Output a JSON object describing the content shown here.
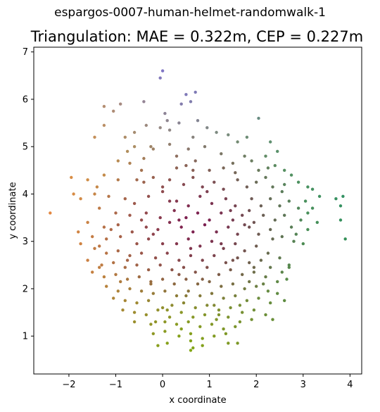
{
  "figure": {
    "suptitle": "espargos-0007-human-helmet-randomwalk-1",
    "title": "Triangulation: MAE = 0.322m, CEP = 0.227m"
  },
  "chart_data": {
    "type": "scatter",
    "title": "Triangulation: MAE = 0.322m, CEP = 0.227m",
    "xlabel": "x coordinate",
    "ylabel": "y coordinate",
    "xlim": [
      -2.75,
      4.25
    ],
    "ylim": [
      0.2,
      7.1
    ],
    "xticks": [
      -2,
      -1,
      0,
      1,
      2,
      3,
      4
    ],
    "yticks": [
      1,
      2,
      3,
      4,
      5,
      6,
      7
    ],
    "grid": false,
    "legend": "none",
    "color_encoding": "2D position colormap (blue top, orange left, green bottom, teal right)",
    "points": [
      [
        0.0,
        6.6
      ],
      [
        -0.05,
        6.45
      ],
      [
        0.5,
        6.1
      ],
      [
        0.7,
        6.15
      ],
      [
        0.6,
        5.95
      ],
      [
        0.4,
        5.9
      ],
      [
        -0.4,
        5.95
      ],
      [
        -0.9,
        5.9
      ],
      [
        -1.25,
        5.85
      ],
      [
        -1.05,
        5.75
      ],
      [
        -1.45,
        5.2
      ],
      [
        -1.25,
        5.45
      ],
      [
        2.05,
        5.6
      ],
      [
        0.05,
        5.7
      ],
      [
        0.1,
        5.55
      ],
      [
        -0.05,
        5.4
      ],
      [
        0.15,
        5.35
      ],
      [
        0.35,
        5.5
      ],
      [
        0.75,
        5.55
      ],
      [
        0.95,
        5.4
      ],
      [
        0.9,
        5.0
      ],
      [
        1.15,
        5.3
      ],
      [
        1.4,
        5.25
      ],
      [
        1.6,
        5.1
      ],
      [
        1.8,
        5.2
      ],
      [
        2.3,
        5.1
      ],
      [
        -0.35,
        5.45
      ],
      [
        -0.6,
        5.3
      ],
      [
        -0.8,
        5.2
      ],
      [
        -0.6,
        5.0
      ],
      [
        -0.25,
        5.0
      ],
      [
        -0.4,
        4.75
      ],
      [
        -0.7,
        4.65
      ],
      [
        -0.95,
        4.7
      ],
      [
        -0.75,
        4.9
      ],
      [
        0.3,
        4.8
      ],
      [
        0.55,
        4.95
      ],
      [
        0.3,
        4.55
      ],
      [
        0.5,
        4.6
      ],
      [
        0.7,
        4.7
      ],
      [
        1.0,
        4.5
      ],
      [
        1.3,
        4.55
      ],
      [
        1.5,
        4.65
      ],
      [
        1.75,
        4.8
      ],
      [
        1.9,
        4.7
      ],
      [
        2.05,
        4.5
      ],
      [
        2.25,
        4.55
      ],
      [
        2.2,
        4.8
      ],
      [
        2.45,
        4.9
      ],
      [
        2.4,
        4.6
      ],
      [
        2.6,
        4.5
      ],
      [
        2.75,
        4.4
      ],
      [
        2.9,
        4.25
      ],
      [
        -1.95,
        4.35
      ],
      [
        -1.6,
        4.3
      ],
      [
        -1.4,
        4.15
      ],
      [
        -1.25,
        4.4
      ],
      [
        -0.95,
        4.3
      ],
      [
        -0.55,
        4.3
      ],
      [
        -0.4,
        4.25
      ],
      [
        -0.2,
        4.35
      ],
      [
        0.0,
        4.15
      ],
      [
        0.15,
        4.3
      ],
      [
        0.45,
        4.2
      ],
      [
        0.65,
        4.35
      ],
      [
        0.85,
        4.15
      ],
      [
        1.1,
        4.25
      ],
      [
        1.3,
        4.1
      ],
      [
        1.6,
        4.3
      ],
      [
        1.8,
        4.15
      ],
      [
        2.0,
        4.25
      ],
      [
        2.2,
        4.35
      ],
      [
        2.35,
        4.15
      ],
      [
        2.6,
        4.2
      ],
      [
        3.1,
        4.15
      ],
      [
        3.2,
        4.1
      ],
      [
        3.35,
        3.95
      ],
      [
        3.7,
        3.9
      ],
      [
        3.85,
        3.95
      ],
      [
        3.8,
        3.75
      ],
      [
        3.8,
        3.45
      ],
      [
        3.9,
        3.05
      ],
      [
        -2.4,
        3.6
      ],
      [
        -1.9,
        4.0
      ],
      [
        -1.75,
        3.9
      ],
      [
        -1.45,
        4.0
      ],
      [
        -1.15,
        3.95
      ],
      [
        -0.8,
        3.9
      ],
      [
        -0.6,
        3.8
      ],
      [
        -0.3,
        3.95
      ],
      [
        0.0,
        4.05
      ],
      [
        0.3,
        3.85
      ],
      [
        0.55,
        3.75
      ],
      [
        0.8,
        3.95
      ],
      [
        1.05,
        3.8
      ],
      [
        1.35,
        3.9
      ],
      [
        1.55,
        3.75
      ],
      [
        1.9,
        3.9
      ],
      [
        2.1,
        3.75
      ],
      [
        2.3,
        3.9
      ],
      [
        2.5,
        3.75
      ],
      [
        2.7,
        3.85
      ],
      [
        2.9,
        3.7
      ],
      [
        3.05,
        3.85
      ],
      [
        3.2,
        3.7
      ],
      [
        3.3,
        3.4
      ],
      [
        3.1,
        3.25
      ],
      [
        2.95,
        3.45
      ],
      [
        -1.35,
        3.7
      ],
      [
        -1.0,
        3.6
      ],
      [
        -0.7,
        3.55
      ],
      [
        -0.35,
        3.6
      ],
      [
        -0.05,
        3.5
      ],
      [
        0.25,
        3.65
      ],
      [
        0.5,
        3.5
      ],
      [
        0.75,
        3.6
      ],
      [
        1.0,
        3.45
      ],
      [
        1.25,
        3.6
      ],
      [
        1.5,
        3.45
      ],
      [
        1.7,
        3.55
      ],
      [
        1.95,
        3.4
      ],
      [
        2.15,
        3.55
      ],
      [
        2.4,
        3.45
      ],
      [
        2.6,
        3.55
      ],
      [
        2.75,
        3.3
      ],
      [
        -1.6,
        3.4
      ],
      [
        -1.25,
        3.3
      ],
      [
        -0.95,
        3.35
      ],
      [
        -0.65,
        3.2
      ],
      [
        -0.35,
        3.3
      ],
      [
        -0.1,
        3.25
      ],
      [
        0.15,
        3.4
      ],
      [
        0.4,
        3.3
      ],
      [
        0.65,
        3.2
      ],
      [
        0.9,
        3.35
      ],
      [
        1.15,
        3.2
      ],
      [
        1.4,
        3.3
      ],
      [
        1.6,
        3.15
      ],
      [
        1.85,
        3.3
      ],
      [
        2.05,
        3.15
      ],
      [
        2.3,
        3.25
      ],
      [
        2.55,
        3.1
      ],
      [
        2.8,
        3.0
      ],
      [
        3.0,
        2.95
      ],
      [
        -1.8,
        3.2
      ],
      [
        -1.5,
        3.1
      ],
      [
        -1.2,
        3.05
      ],
      [
        -0.9,
        3.1
      ],
      [
        -0.55,
        2.95
      ],
      [
        -0.3,
        3.05
      ],
      [
        0.0,
        2.95
      ],
      [
        0.3,
        2.95
      ],
      [
        0.55,
        3.05
      ],
      [
        0.8,
        2.9
      ],
      [
        1.05,
        3.0
      ],
      [
        1.3,
        2.85
      ],
      [
        1.55,
        2.95
      ],
      [
        1.75,
        2.8
      ],
      [
        2.0,
        2.9
      ],
      [
        2.25,
        2.75
      ],
      [
        2.5,
        2.65
      ],
      [
        2.7,
        2.5
      ],
      [
        -1.75,
        2.95
      ],
      [
        -1.45,
        2.85
      ],
      [
        -1.2,
        2.75
      ],
      [
        -0.95,
        2.8
      ],
      [
        -0.7,
        2.7
      ],
      [
        -0.45,
        2.75
      ],
      [
        -0.15,
        2.65
      ],
      [
        0.1,
        2.75
      ],
      [
        0.35,
        2.6
      ],
      [
        0.6,
        2.7
      ],
      [
        0.85,
        2.6
      ],
      [
        1.1,
        2.7
      ],
      [
        1.35,
        2.55
      ],
      [
        1.6,
        2.65
      ],
      [
        1.85,
        2.55
      ],
      [
        2.1,
        2.6
      ],
      [
        2.3,
        2.45
      ],
      [
        2.55,
        2.35
      ],
      [
        -1.6,
        2.6
      ],
      [
        -1.3,
        2.5
      ],
      [
        -1.05,
        2.55
      ],
      [
        -0.8,
        2.45
      ],
      [
        -0.55,
        2.5
      ],
      [
        -0.3,
        2.4
      ],
      [
        -0.05,
        2.5
      ],
      [
        0.2,
        2.4
      ],
      [
        0.45,
        2.45
      ],
      [
        0.7,
        2.35
      ],
      [
        0.95,
        2.45
      ],
      [
        1.2,
        2.3
      ],
      [
        1.45,
        2.4
      ],
      [
        1.7,
        2.3
      ],
      [
        1.95,
        2.35
      ],
      [
        2.2,
        2.25
      ],
      [
        2.45,
        2.15
      ],
      [
        2.65,
        2.2
      ],
      [
        -1.5,
        2.35
      ],
      [
        -1.25,
        2.25
      ],
      [
        -1.0,
        2.3
      ],
      [
        -0.75,
        2.2
      ],
      [
        -0.5,
        2.25
      ],
      [
        -0.25,
        2.15
      ],
      [
        0.0,
        2.2
      ],
      [
        0.25,
        2.1
      ],
      [
        0.5,
        2.2
      ],
      [
        0.75,
        2.1
      ],
      [
        1.0,
        2.15
      ],
      [
        1.25,
        2.05
      ],
      [
        1.5,
        2.1
      ],
      [
        1.75,
        2.0
      ],
      [
        2.0,
        2.05
      ],
      [
        2.25,
        1.95
      ],
      [
        2.45,
        1.9
      ],
      [
        -1.2,
        2.05
      ],
      [
        -0.95,
        1.95
      ],
      [
        -0.7,
        2.0
      ],
      [
        -0.45,
        1.95
      ],
      [
        -0.2,
        1.9
      ],
      [
        0.05,
        1.95
      ],
      [
        0.3,
        1.85
      ],
      [
        0.55,
        1.95
      ],
      [
        0.8,
        1.85
      ],
      [
        1.05,
        1.9
      ],
      [
        1.3,
        1.8
      ],
      [
        1.55,
        1.85
      ],
      [
        1.8,
        1.75
      ],
      [
        2.05,
        1.8
      ],
      [
        2.3,
        1.7
      ],
      [
        2.6,
        1.75
      ],
      [
        -1.05,
        1.8
      ],
      [
        -0.8,
        1.75
      ],
      [
        -0.55,
        1.7
      ],
      [
        -0.3,
        1.75
      ],
      [
        0.0,
        1.6
      ],
      [
        0.1,
        1.55
      ],
      [
        0.2,
        1.65
      ],
      [
        0.45,
        1.7
      ],
      [
        0.7,
        1.6
      ],
      [
        0.95,
        1.65
      ],
      [
        1.2,
        1.55
      ],
      [
        1.45,
        1.6
      ],
      [
        1.7,
        1.5
      ],
      [
        1.95,
        1.55
      ],
      [
        2.2,
        1.45
      ],
      [
        2.35,
        1.35
      ],
      [
        -0.85,
        1.55
      ],
      [
        -0.6,
        1.5
      ],
      [
        -0.35,
        1.45
      ],
      [
        -0.1,
        1.55
      ],
      [
        0.15,
        1.4
      ],
      [
        0.4,
        1.5
      ],
      [
        0.65,
        1.4
      ],
      [
        0.9,
        1.45
      ],
      [
        1.15,
        1.35
      ],
      [
        1.4,
        1.4
      ],
      [
        1.65,
        1.3
      ],
      [
        1.9,
        1.35
      ],
      [
        -0.6,
        1.3
      ],
      [
        -0.25,
        1.25
      ],
      [
        0.05,
        1.3
      ],
      [
        0.3,
        1.25
      ],
      [
        0.55,
        1.3
      ],
      [
        0.8,
        1.2
      ],
      [
        1.05,
        1.25
      ],
      [
        1.3,
        1.15
      ],
      [
        1.55,
        1.2
      ],
      [
        -0.2,
        1.05
      ],
      [
        0.05,
        1.1
      ],
      [
        0.35,
        1.0
      ],
      [
        0.6,
        1.05
      ],
      [
        0.85,
        0.95
      ],
      [
        1.1,
        1.0
      ],
      [
        1.35,
        1.05
      ],
      [
        -0.1,
        0.8
      ],
      [
        0.1,
        0.85
      ],
      [
        0.6,
        0.9
      ],
      [
        0.65,
        0.75
      ],
      [
        0.85,
        0.8
      ],
      [
        1.4,
        0.85
      ],
      [
        1.6,
        0.85
      ],
      [
        0.6,
        0.7
      ],
      [
        -0.2,
        4.95
      ],
      [
        0.65,
        5.2
      ],
      [
        1.25,
        4.85
      ],
      [
        1.55,
        4.45
      ],
      [
        0.15,
        5.05
      ],
      [
        -0.45,
        4.5
      ],
      [
        0.95,
        4.05
      ],
      [
        1.45,
        3.65
      ],
      [
        1.75,
        3.35
      ],
      [
        0.35,
        3.45
      ],
      [
        -0.2,
        3.15
      ],
      [
        0.6,
        2.85
      ],
      [
        1.25,
        2.95
      ],
      [
        1.5,
        2.6
      ],
      [
        0.85,
        2.2
      ],
      [
        1.95,
        2.45
      ],
      [
        0.35,
        2.3
      ],
      [
        -0.75,
        2.6
      ],
      [
        -1.35,
        2.9
      ],
      [
        -0.45,
        3.45
      ],
      [
        0.15,
        3.85
      ],
      [
        0.65,
        4.5
      ],
      [
        1.85,
        3.65
      ],
      [
        2.35,
        3.05
      ],
      [
        2.15,
        2.1
      ],
      [
        1.65,
        1.65
      ],
      [
        1.1,
        1.65
      ],
      [
        0.5,
        1.85
      ],
      [
        -0.25,
        2.1
      ],
      [
        -0.9,
        2.15
      ],
      [
        -1.35,
        2.45
      ],
      [
        2.55,
        4.05
      ],
      [
        3.1,
        3.6
      ],
      [
        2.85,
        3.15
      ],
      [
        -0.15,
        1.3
      ],
      [
        0.4,
        1.15
      ],
      [
        1.2,
        1.45
      ],
      [
        1.85,
        2.15
      ],
      [
        2.7,
        2.45
      ],
      [
        -1.1,
        3.25
      ]
    ]
  }
}
